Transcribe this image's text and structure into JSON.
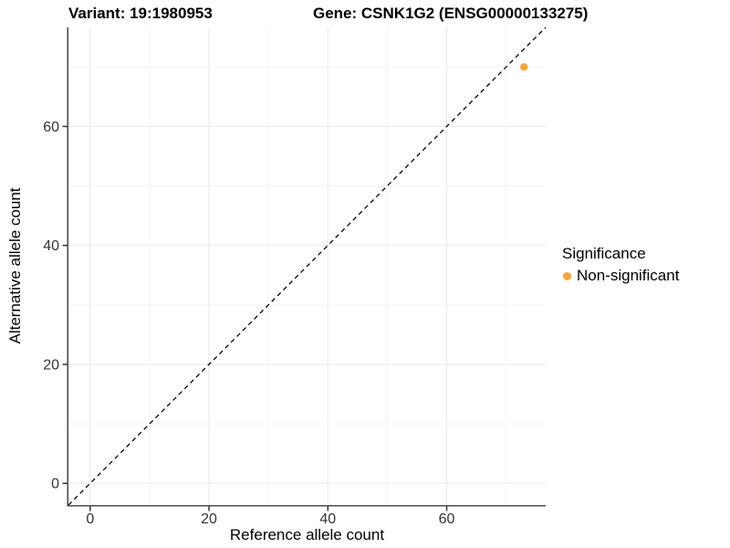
{
  "chart_data": {
    "type": "scatter",
    "titles": [
      "Variant: 19:1980953",
      "Gene: CSNK1G2 (ENSG00000133275)"
    ],
    "xlabel": "Reference allele count",
    "ylabel": "Alternative allele count",
    "xlim": [
      -3.65,
      76.65
    ],
    "ylim": [
      -3.65,
      76.65
    ],
    "x_ticks": [
      0,
      20,
      40,
      60
    ],
    "y_ticks": [
      0,
      20,
      40,
      60
    ],
    "x_minor_ticks": [
      10,
      30,
      50,
      70
    ],
    "y_minor_ticks": [
      10,
      30,
      50,
      70
    ],
    "grid": true,
    "reference_line": {
      "type": "identity",
      "style": "dashed",
      "color": "#000000"
    },
    "series": [
      {
        "name": "Non-significant",
        "color": "#F8A33A",
        "points": [
          {
            "x": 73,
            "y": 70
          }
        ]
      }
    ],
    "legend": {
      "title": "Significance",
      "position": "right",
      "items": [
        {
          "label": "Non-significant",
          "color": "#F8A33A"
        }
      ]
    }
  }
}
